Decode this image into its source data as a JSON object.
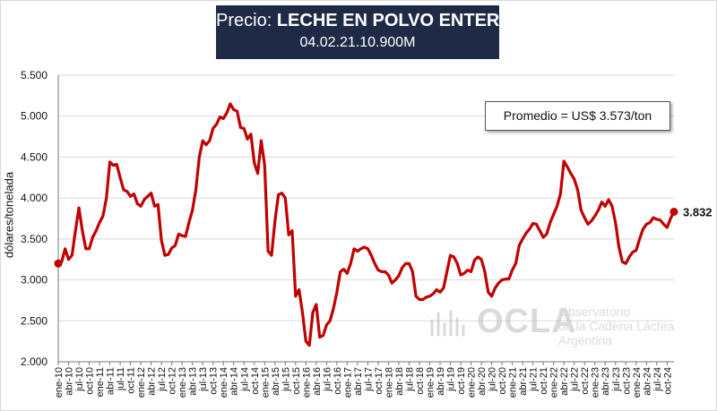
{
  "header": {
    "title_prefix": "Precio: ",
    "title_bold": "LECHE EN POLVO ENTERA",
    "subtitle": "04.02.21.10.900M"
  },
  "average_label": "Promedio = US$ 3.573/ton",
  "watermark": {
    "word": "OCLA",
    "line1": "Observatorio",
    "line2": "de la Cadena Láctea",
    "line3": "Argentina"
  },
  "colors": {
    "line": "#c00000",
    "title_bg": "#1f2b46",
    "grid": "#d9d9d9"
  },
  "chart_data": {
    "type": "line",
    "title": "Precio: LECHE EN POLVO ENTERA",
    "xlabel": "",
    "ylabel": "dólares/tonelada",
    "ylim": [
      2000,
      5500
    ],
    "yticks": [
      2000,
      2500,
      3000,
      3500,
      4000,
      4500,
      5000,
      5500
    ],
    "ytick_labels": [
      "2.000",
      "2.500",
      "3.000",
      "3.500",
      "4.000",
      "4.500",
      "5.000",
      "5.500"
    ],
    "xtick_labels": [
      "ene-10",
      "abr-10",
      "jul-10",
      "oct-10",
      "ene-11",
      "abr-11",
      "jul-11",
      "oct-11",
      "ene-12",
      "abr-12",
      "jul-12",
      "oct-12",
      "ene-13",
      "abr-13",
      "jul-13",
      "oct-13",
      "ene-14",
      "abr-14",
      "jul-14",
      "oct-14",
      "ene-15",
      "abr-15",
      "jul-15",
      "oct-15",
      "ene-16",
      "abr-16",
      "jul-16",
      "oct-16",
      "ene-17",
      "abr-17",
      "jul-17",
      "oct-17",
      "ene-18",
      "abr-18",
      "jul-18",
      "oct-18",
      "ene-19",
      "abr-19",
      "jul-19",
      "oct-19",
      "ene-20",
      "abr-20",
      "jul-20",
      "oct-20",
      "ene-21",
      "abr-21",
      "jul-21",
      "oct-21",
      "ene-22",
      "abr-22",
      "jul-22",
      "oct-22",
      "ene-23",
      "abr-23",
      "jul-23",
      "oct-23",
      "ene-24",
      "abr-24",
      "jul-24",
      "oct-24"
    ],
    "grid": true,
    "end_label": "3.832",
    "series": [
      {
        "name": "Precio leche en polvo entera",
        "start": "ene-10",
        "frequency": "monthly",
        "values": [
          3200,
          3220,
          3380,
          3250,
          3300,
          3600,
          3880,
          3600,
          3380,
          3380,
          3520,
          3600,
          3700,
          3780,
          4000,
          4440,
          4400,
          4410,
          4250,
          4100,
          4080,
          4020,
          4050,
          3930,
          3900,
          3980,
          4020,
          4060,
          3900,
          3920,
          3480,
          3300,
          3310,
          3390,
          3420,
          3560,
          3540,
          3530,
          3700,
          3850,
          4100,
          4500,
          4700,
          4650,
          4700,
          4850,
          4900,
          4990,
          4970,
          5040,
          5150,
          5080,
          5060,
          4860,
          4850,
          4720,
          4780,
          4430,
          4300,
          4700,
          4400,
          3350,
          3300,
          3720,
          4040,
          4060,
          4000,
          3550,
          3600,
          2800,
          2880,
          2600,
          2250,
          2200,
          2600,
          2700,
          2300,
          2320,
          2450,
          2500,
          2650,
          2850,
          3100,
          3130,
          3080,
          3200,
          3380,
          3350,
          3380,
          3400,
          3380,
          3300,
          3200,
          3120,
          3100,
          3100,
          3060,
          2960,
          3000,
          3050,
          3150,
          3200,
          3200,
          3100,
          2800,
          2760,
          2760,
          2790,
          2800,
          2830,
          2880,
          2850,
          2900,
          3100,
          3300,
          3280,
          3200,
          3060,
          3080,
          3120,
          3100,
          3240,
          3280,
          3250,
          3100,
          2850,
          2800,
          2900,
          2960,
          3000,
          3010,
          3010,
          3120,
          3200,
          3420,
          3500,
          3570,
          3620,
          3690,
          3680,
          3600,
          3520,
          3560,
          3700,
          3800,
          3900,
          4050,
          4450,
          4380,
          4300,
          4230,
          4100,
          3850,
          3760,
          3680,
          3720,
          3780,
          3850,
          3950,
          3900,
          3980,
          3900,
          3700,
          3400,
          3220,
          3200,
          3280,
          3340,
          3360,
          3500,
          3620,
          3680,
          3700,
          3760,
          3740,
          3730,
          3680,
          3640,
          3750,
          3832
        ]
      }
    ]
  }
}
